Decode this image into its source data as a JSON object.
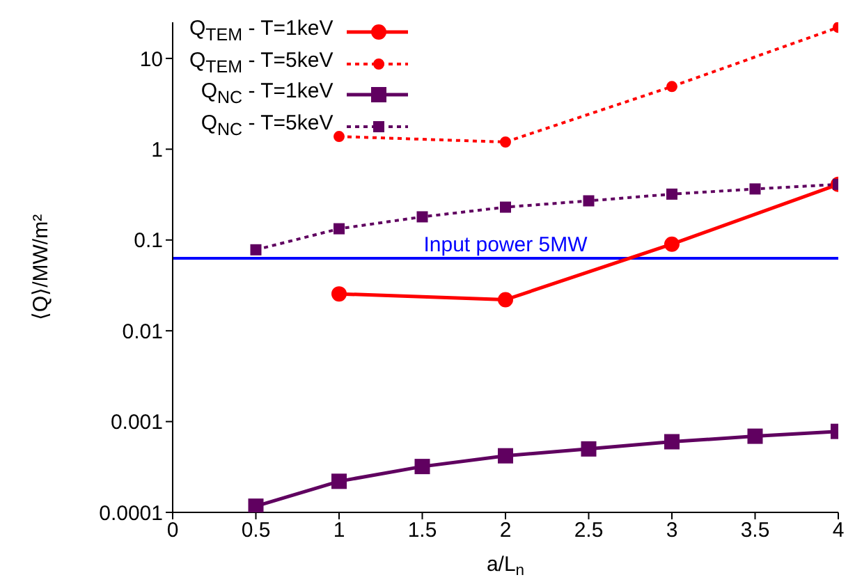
{
  "chart_data": {
    "type": "line",
    "xlabel": "a/L$_{n}$",
    "ylabel": "⟨Q⟩/MW/m²",
    "log": "y",
    "xlim": [
      0,
      4
    ],
    "xticks": [
      0,
      0.5,
      1,
      1.5,
      2,
      2.5,
      3,
      3.5,
      4
    ],
    "ylim": [
      0.0001,
      25
    ],
    "yticks": [
      0.0001,
      0.001,
      0.01,
      0.1,
      1,
      10
    ],
    "grid": false,
    "legend": "top left",
    "series": [
      {
        "name": "Q$_{TEM}$ - T=1keV",
        "color": "#ff0000",
        "marker": "circle",
        "line_style": "solid",
        "x": [
          1,
          2,
          3,
          4
        ],
        "values": [
          0.0255,
          0.022,
          0.09,
          0.41
        ]
      },
      {
        "name": "Q$_{TEM}$ - T=5keV",
        "color": "#ff0000",
        "marker": "circle",
        "line_style": "dotted",
        "x": [
          1,
          2,
          3,
          4
        ],
        "values": [
          1.38,
          1.2,
          4.9,
          22
        ]
      },
      {
        "name": "Q$_{NC}$ - T=1keV",
        "color": "#600060",
        "marker": "square",
        "line_style": "solid",
        "x": [
          0.5,
          1,
          1.5,
          2,
          2.5,
          3,
          3.5,
          4
        ],
        "values": [
          0.000117,
          0.00022,
          0.00032,
          0.00042,
          0.0005,
          0.0006,
          0.00069,
          0.00078
        ]
      },
      {
        "name": "Q$_{NC}$ - T=5keV",
        "color": "#600060",
        "marker": "square",
        "line_style": "dotted",
        "x": [
          0.5,
          1,
          1.5,
          2,
          2.5,
          3,
          3.5,
          4
        ],
        "values": [
          0.078,
          0.133,
          0.18,
          0.23,
          0.27,
          0.32,
          0.365,
          0.41
        ]
      }
    ],
    "ref_lines": [
      {
        "axis": "y",
        "value": 0.063,
        "label": "Input power 5MW",
        "color": "#0000ff"
      }
    ]
  }
}
